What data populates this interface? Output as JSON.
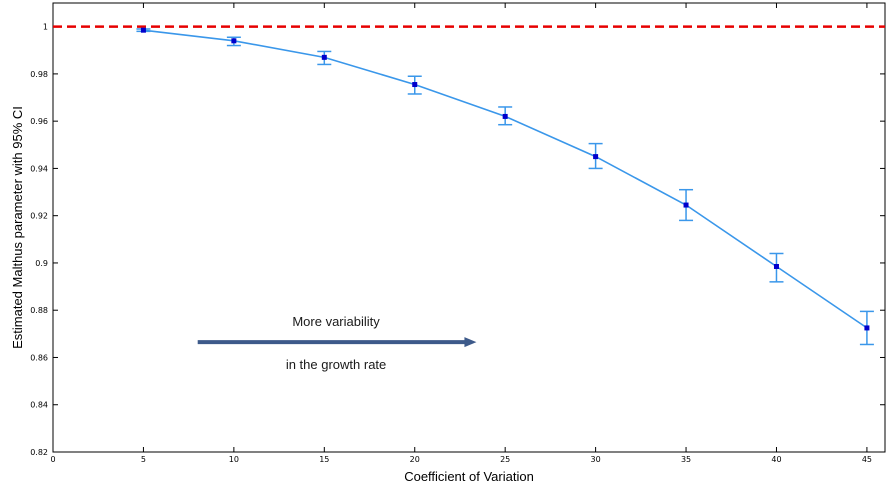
{
  "chart_data": {
    "type": "line",
    "xlabel": "Coefficient of Variation",
    "ylabel": "Estimated Malthus parameter with 95% CI",
    "xlim": [
      0,
      46
    ],
    "ylim": [
      0.82,
      1.01
    ],
    "xticks": [
      0,
      5,
      10,
      15,
      20,
      25,
      30,
      35,
      40,
      45
    ],
    "yticks": [
      0.82,
      0.84,
      0.86,
      0.88,
      0.9,
      0.92,
      0.94,
      0.96,
      0.98,
      1
    ],
    "xtick_labels": [
      "0",
      "5",
      "10",
      "15",
      "20",
      "25",
      "30",
      "35",
      "40",
      "45"
    ],
    "ytick_labels": [
      "0.82",
      "0.84",
      "0.86",
      "0.88",
      "0.9",
      "0.92",
      "0.94",
      "0.96",
      "0.98",
      "1"
    ],
    "grid": false,
    "series": [
      {
        "x": [
          5,
          10,
          15,
          20,
          25,
          30,
          35,
          40,
          45
        ],
        "y": [
          0.9985,
          0.994,
          0.987,
          0.9755,
          0.962,
          0.945,
          0.9245,
          0.8985,
          0.8725
        ],
        "ci_low": [
          0.998,
          0.992,
          0.984,
          0.9715,
          0.9585,
          0.94,
          0.918,
          0.892,
          0.8655
        ],
        "ci_high": [
          0.999,
          0.9955,
          0.9895,
          0.979,
          0.966,
          0.9505,
          0.931,
          0.904,
          0.8795
        ],
        "color": "#3a97ea",
        "marker_color": "#0000cc"
      }
    ],
    "reference_line": {
      "y": 1,
      "color": "#e60000",
      "style": "dashed"
    },
    "annotation": {
      "line1": "More variability",
      "line2": "in the growth rate",
      "arrow_from_x": 8,
      "arrow_to_x": 23.3,
      "arrow_y": 0.8665,
      "arrow_color": "#3d5a8a"
    }
  }
}
